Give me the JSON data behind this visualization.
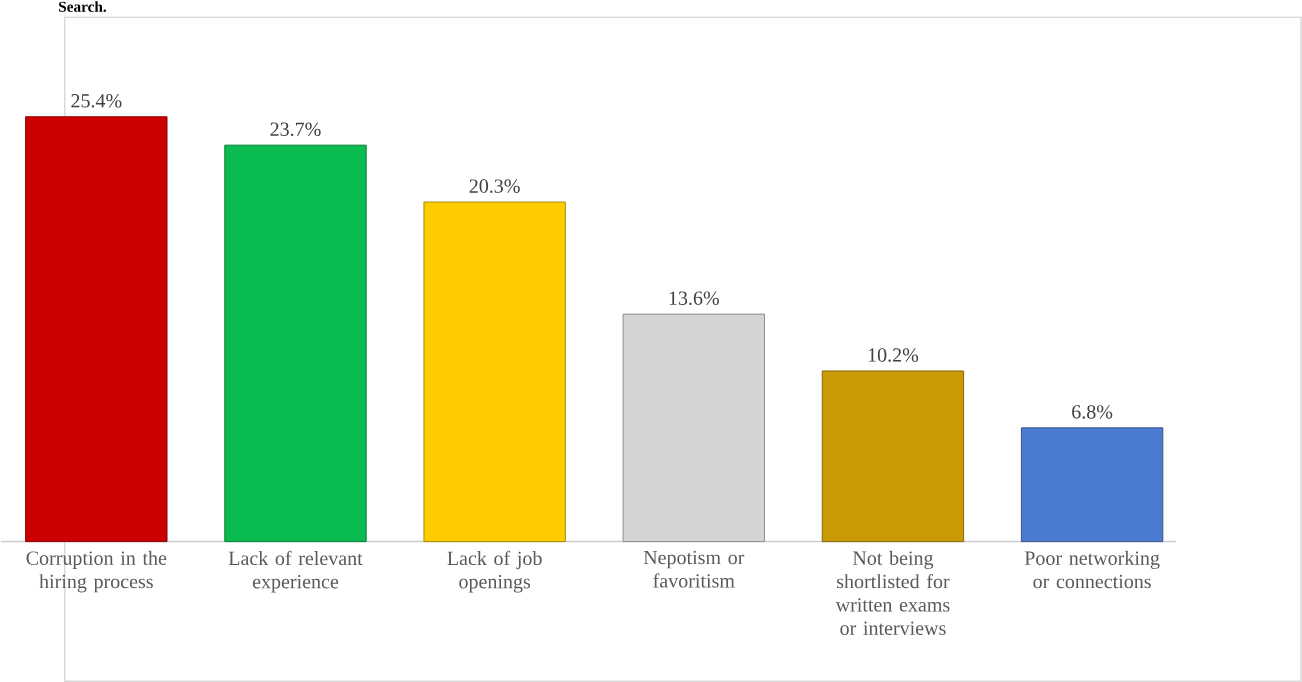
{
  "chart_data": {
    "type": "bar",
    "title": "Search.",
    "categories": [
      "Corruption in the hiring process",
      "Lack of relevant experience",
      "Lack of job openings",
      "Nepotism or favoritism",
      "Not being shortlisted for written exams or interviews",
      "Poor networking or connections"
    ],
    "values": [
      25.4,
      23.7,
      20.3,
      13.6,
      10.2,
      6.8
    ],
    "value_labels": [
      "25.4%",
      "23.7%",
      "20.3%",
      "13.6%",
      "10.2%",
      "6.8%"
    ],
    "colors": [
      "#cc0000",
      "#0abb50",
      "#ffcc00",
      "#d4d4d4",
      "#c99a06",
      "#4a7bd0"
    ]
  }
}
